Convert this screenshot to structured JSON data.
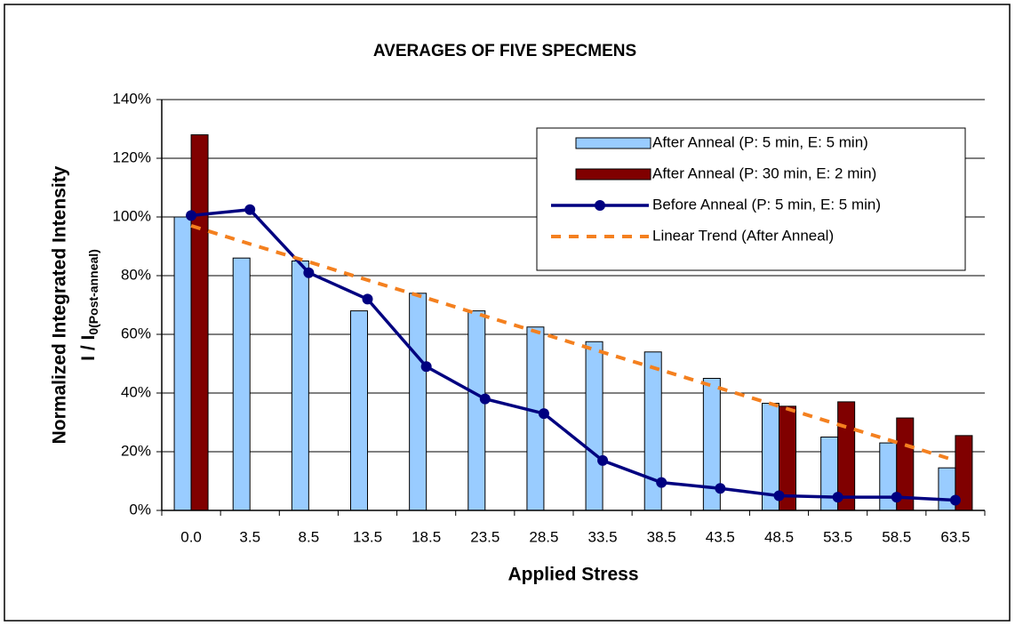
{
  "chart_data": {
    "type": "bar",
    "title": "AVERAGES OF FIVE SPECMENS",
    "x_label": "Applied Stress",
    "y_label": {
      "line1": "Normalized Integrated Intensity",
      "line2": "I / I",
      "line2_subscript": "0(Post-anneal)"
    },
    "categories": [
      "0.0",
      "3.5",
      "8.5",
      "13.5",
      "18.5",
      "23.5",
      "28.5",
      "33.5",
      "38.5",
      "43.5",
      "48.5",
      "53.5",
      "58.5",
      "63.5"
    ],
    "series": [
      {
        "name": "After Anneal (P: 5 min, E: 5 min)",
        "type": "bar",
        "color": "#99ccff",
        "values": [
          100,
          86,
          85,
          68,
          74,
          68,
          62.5,
          57.5,
          54,
          45,
          36.5,
          25,
          23,
          14.5
        ]
      },
      {
        "name": "After Anneal (P: 30 min, E: 2 min)",
        "type": "bar",
        "color": "#800000",
        "values": [
          128,
          null,
          null,
          null,
          null,
          null,
          null,
          null,
          null,
          null,
          35.5,
          37,
          31.5,
          25.5
        ]
      },
      {
        "name": "Before Anneal (P: 5 min, E: 5 min)",
        "type": "line",
        "color": "#000080",
        "values": [
          100.5,
          102.5,
          81,
          72,
          49,
          38,
          33,
          17,
          9.5,
          7.5,
          5,
          4.5,
          4.5,
          3.5
        ]
      },
      {
        "name": "Linear Trend (After Anneal)",
        "type": "trend",
        "color": "#f4801f",
        "values": [
          97,
          90.8,
          84.7,
          78.5,
          72.4,
          66.2,
          60.1,
          53.9,
          47.8,
          41.6,
          35.5,
          29.3,
          23.2,
          17
        ]
      }
    ],
    "ylim": [
      0,
      140
    ],
    "yticks": [
      {
        "value": 0,
        "label": "0%"
      },
      {
        "value": 20,
        "label": "20%"
      },
      {
        "value": 40,
        "label": "40%"
      },
      {
        "value": 60,
        "label": "60%"
      },
      {
        "value": 80,
        "label": "80%"
      },
      {
        "value": 100,
        "label": "100%"
      },
      {
        "value": 120,
        "label": "120%"
      },
      {
        "value": 140,
        "label": "140%"
      }
    ],
    "grid": true,
    "legend": "upper right"
  }
}
